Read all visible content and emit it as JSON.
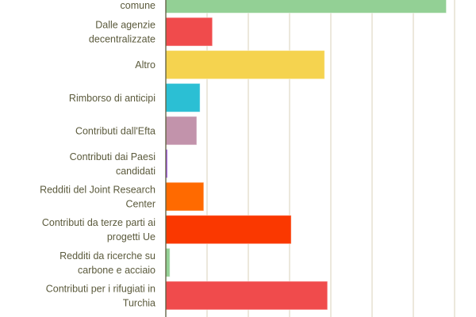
{
  "chart_data": {
    "type": "bar",
    "orientation": "horizontal",
    "grid": true,
    "categories": [
      [
        "comune"
      ],
      [
        "Dalle agenzie",
        "decentralizzate"
      ],
      [
        "Altro"
      ],
      [
        "Rimborso di anticipi"
      ],
      [
        "Contributi dall'Efta"
      ],
      [
        "Contributi dai Paesi",
        "candidati"
      ],
      [
        "Redditi del Joint Research",
        "Center"
      ],
      [
        "Contributi da terze parti ai",
        "progetti Ue"
      ],
      [
        "Redditi da ricerche su",
        "carbone e acciaio"
      ],
      [
        "Contributi per i rifugiati in",
        "Turchia"
      ]
    ],
    "values": [
      6.8,
      1.13,
      3.85,
      0.83,
      0.75,
      0.04,
      0.92,
      3.04,
      0.1,
      3.92
    ],
    "colors": [
      "#93d095",
      "#f04b4c",
      "#f5d34f",
      "#2bbfd4",
      "#c293ab",
      "#9b4fe0",
      "#ff6a00",
      "#fa3800",
      "#93d095",
      "#f04b4c"
    ],
    "xlim": [
      0,
      7
    ],
    "gridline_color": "#d9d1b8",
    "axis_color": "#5b5a3c"
  }
}
